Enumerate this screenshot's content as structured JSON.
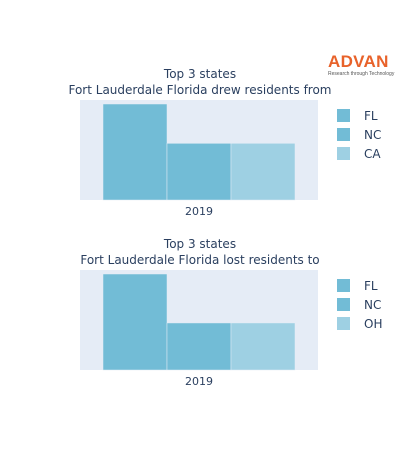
{
  "brand": {
    "name": "ADVAN",
    "tagline": "Research through Technology",
    "color": "#e8622a"
  },
  "chart_data": [
    {
      "type": "bar",
      "title": "Top 3 states",
      "subtitle": "Fort Lauderdale Florida drew residents from",
      "categories": [
        "2019"
      ],
      "series": [
        {
          "name": "FL",
          "values": [
            1.0
          ],
          "color": "#72bcd6"
        },
        {
          "name": "NC",
          "values": [
            0.59
          ],
          "color": "#72bcd6"
        },
        {
          "name": "CA",
          "values": [
            0.59
          ],
          "color": "#9ed0e3"
        }
      ],
      "legend": "right",
      "background": "#e5ecf6"
    },
    {
      "type": "bar",
      "title": "Top 3 states",
      "subtitle": "Fort Lauderdale Florida lost residents to",
      "categories": [
        "2019"
      ],
      "series": [
        {
          "name": "FL",
          "values": [
            1.0
          ],
          "color": "#72bcd6"
        },
        {
          "name": "NC",
          "values": [
            0.49
          ],
          "color": "#72bcd6"
        },
        {
          "name": "OH",
          "values": [
            0.49
          ],
          "color": "#9ed0e3"
        }
      ],
      "legend": "right",
      "background": "#e5ecf6"
    }
  ]
}
